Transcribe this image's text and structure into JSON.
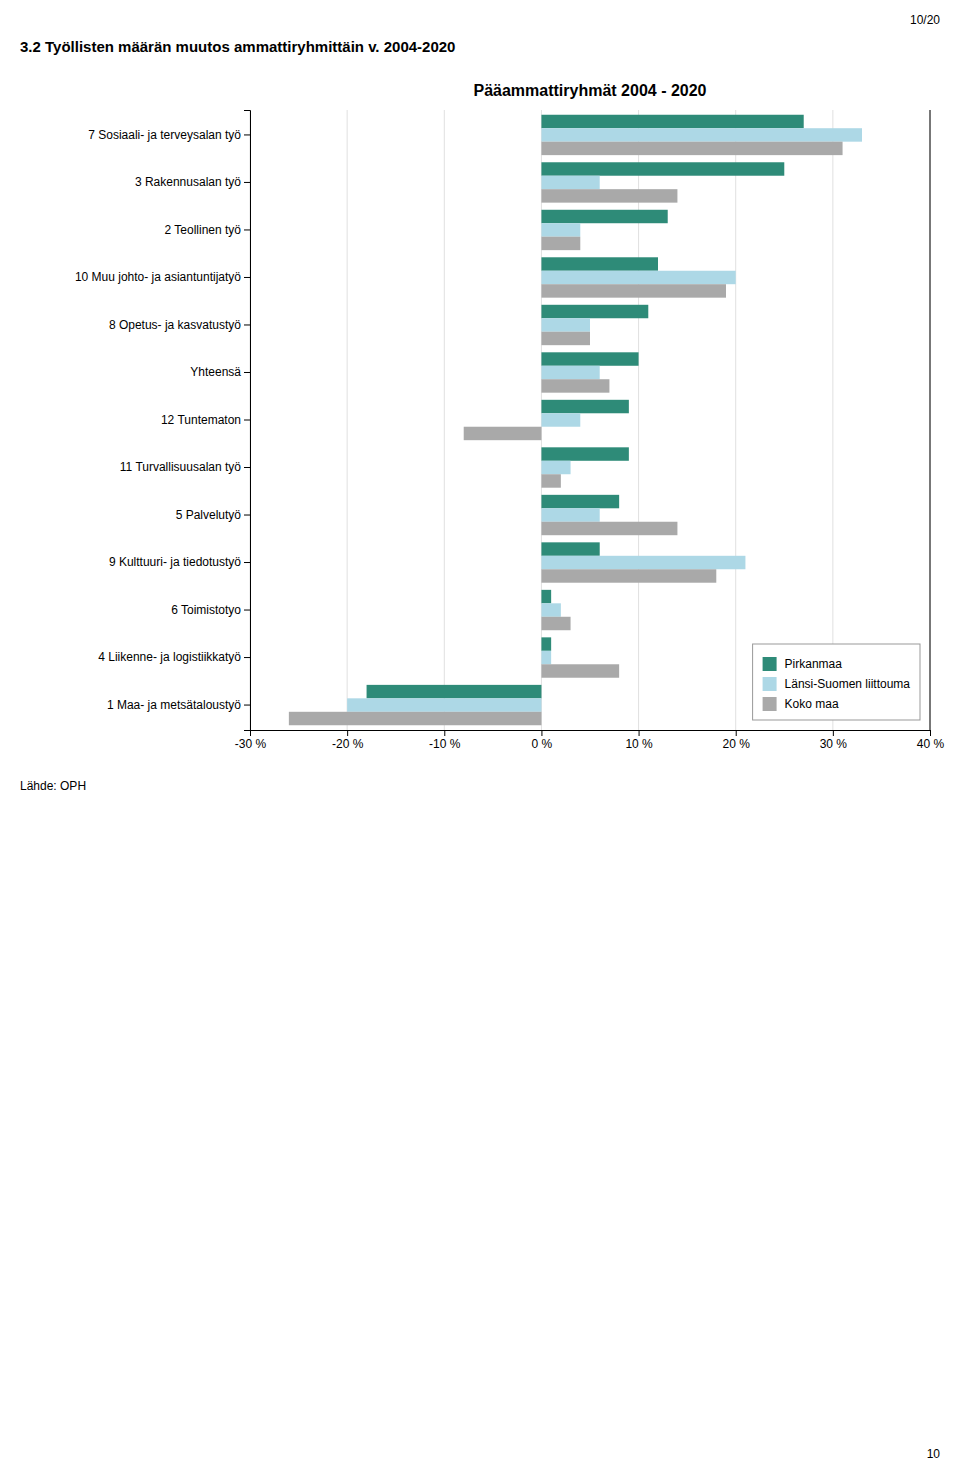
{
  "page_title": "3.2 Työllisten määrän muutos ammattiryhmittäin v. 2004-2020",
  "page_number": "10/20",
  "source": "Lähde: OPH",
  "page_footer": "10",
  "chart_data": {
    "type": "bar",
    "orientation": "horizontal",
    "title": "Pääammattiryhmät 2004 - 2020",
    "categories": [
      "7 Sosiaali- ja terveysalan työ",
      "3 Rakennusalan työ",
      "2 Teollinen työ",
      "10 Muu johto- ja asiantuntijatyö",
      "8 Opetus- ja kasvatustyö",
      "Yhteensä",
      "12 Tuntematon",
      "11 Turvallisuusalan työ",
      "5 Palvelutyö",
      "9 Kulttuuri- ja tiedotustyö",
      "6 Toimistotyo",
      "4 Liikenne- ja logistiikkatyö",
      "1 Maa- ja metsätaloustyö"
    ],
    "series": [
      {
        "name": "Pirkanmaa",
        "color": "#2E8B78",
        "values": [
          27,
          25,
          13,
          12,
          11,
          10,
          9,
          9,
          8,
          6,
          1,
          1,
          -18
        ]
      },
      {
        "name": "Länsi-Suomen liittouma",
        "color": "#ADD8E6",
        "values": [
          33,
          6,
          4,
          20,
          5,
          6,
          4,
          3,
          6,
          21,
          2,
          1,
          -20
        ]
      },
      {
        "name": "Koko maa",
        "color": "#A9A9A9",
        "values": [
          31,
          14,
          4,
          19,
          5,
          7,
          -8,
          2,
          14,
          18,
          3,
          8,
          -26
        ]
      }
    ],
    "xlim": [
      -30,
      40
    ],
    "xticks": [
      {
        "value": -30,
        "label": "-30 %"
      },
      {
        "value": -20,
        "label": "-20 %"
      },
      {
        "value": -10,
        "label": "-10 %"
      },
      {
        "value": 0,
        "label": "0 %"
      },
      {
        "value": 10,
        "label": "10 %"
      },
      {
        "value": 20,
        "label": "20 %"
      },
      {
        "value": 30,
        "label": "30 %"
      },
      {
        "value": 40,
        "label": "40 %"
      }
    ],
    "grid": true,
    "legend": "lower right"
  }
}
